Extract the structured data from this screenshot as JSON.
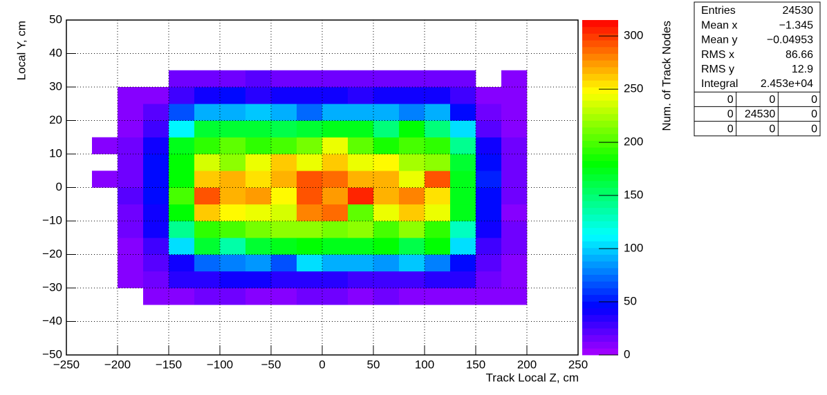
{
  "chart_data": {
    "type": "heatmap",
    "xlabel": "Track Local Z, cm",
    "ylabel": "Local Y, cm",
    "zlabel": "Num. of Track Nodes",
    "xlim": [
      -250,
      250
    ],
    "ylim": [
      -50,
      50
    ],
    "zlim": [
      0,
      315
    ],
    "grid": true,
    "xticks": [
      {
        "value": -250,
        "label": "−250"
      },
      {
        "value": -200,
        "label": "−200"
      },
      {
        "value": -150,
        "label": "−150"
      },
      {
        "value": -100,
        "label": "−100"
      },
      {
        "value": -50,
        "label": "−50"
      },
      0,
      50,
      100,
      150,
      200,
      250
    ],
    "yticks": [
      {
        "value": -50,
        "label": "−50"
      },
      {
        "value": -40,
        "label": "−40"
      },
      {
        "value": -30,
        "label": "−30"
      },
      {
        "value": -20,
        "label": "−20"
      },
      {
        "value": -10,
        "label": "−10"
      },
      0,
      10,
      20,
      30,
      40,
      50
    ],
    "zticks": [
      0,
      50,
      100,
      150,
      200,
      250,
      300
    ],
    "x_bins": [
      -225,
      -200,
      -175,
      -150,
      -125,
      -100,
      -75,
      -50,
      -25,
      0,
      25,
      50,
      75,
      100,
      125,
      150,
      175,
      200
    ],
    "y_bins": [
      -35,
      -30,
      -25,
      -20,
      -15,
      -10,
      -5,
      0,
      5,
      10,
      15,
      20,
      25,
      30,
      35
    ],
    "z": [
      [
        null,
        null,
        10,
        12,
        14,
        13,
        12,
        12,
        13,
        14,
        12,
        13,
        12,
        12,
        12,
        12,
        10
      ],
      [
        null,
        10,
        15,
        35,
        35,
        38,
        38,
        35,
        35,
        35,
        30,
        30,
        30,
        35,
        35,
        15,
        10
      ],
      [
        null,
        10,
        20,
        40,
        75,
        80,
        85,
        65,
        105,
        90,
        90,
        85,
        95,
        80,
        50,
        25,
        10
      ],
      [
        null,
        12,
        30,
        105,
        165,
        135,
        165,
        175,
        180,
        175,
        175,
        180,
        160,
        180,
        105,
        30,
        15
      ],
      [
        null,
        18,
        40,
        140,
        190,
        200,
        210,
        215,
        220,
        210,
        215,
        200,
        215,
        190,
        130,
        40,
        15
      ],
      [
        null,
        15,
        40,
        180,
        260,
        250,
        240,
        235,
        280,
        285,
        205,
        245,
        260,
        240,
        175,
        45,
        12
      ],
      [
        null,
        20,
        45,
        200,
        290,
        265,
        275,
        250,
        290,
        275,
        305,
        270,
        280,
        255,
        175,
        50,
        15
      ],
      [
        10,
        15,
        50,
        180,
        260,
        265,
        255,
        270,
        295,
        285,
        270,
        270,
        245,
        290,
        175,
        55,
        15
      ],
      [
        null,
        18,
        45,
        180,
        235,
        220,
        245,
        260,
        245,
        260,
        240,
        250,
        225,
        220,
        170,
        45,
        15
      ],
      [
        10,
        18,
        40,
        175,
        195,
        205,
        195,
        200,
        210,
        240,
        205,
        185,
        200,
        195,
        140,
        40,
        15
      ],
      [
        null,
        12,
        30,
        110,
        165,
        170,
        165,
        160,
        165,
        175,
        175,
        150,
        180,
        145,
        105,
        25,
        12
      ],
      [
        null,
        10,
        25,
        65,
        90,
        90,
        100,
        90,
        75,
        90,
        90,
        90,
        80,
        90,
        50,
        15,
        10
      ],
      [
        null,
        8,
        12,
        30,
        40,
        45,
        35,
        40,
        38,
        40,
        35,
        38,
        40,
        38,
        30,
        10,
        8
      ],
      [
        null,
        null,
        null,
        15,
        15,
        15,
        20,
        15,
        15,
        15,
        15,
        15,
        15,
        15,
        15,
        null,
        10
      ]
    ],
    "stats": {
      "rows": [
        [
          "Entries",
          "24530"
        ],
        [
          "Mean x",
          "−1.345"
        ],
        [
          "Mean y",
          "−0.04953"
        ],
        [
          "RMS x",
          "86.66"
        ],
        [
          "RMS y",
          "12.9"
        ],
        [
          "Integral",
          "2.453e+04"
        ]
      ],
      "overflow": [
        [
          "0",
          "0",
          "0"
        ],
        [
          "0",
          "24530",
          "0"
        ],
        [
          "0",
          "0",
          "0"
        ]
      ]
    }
  }
}
